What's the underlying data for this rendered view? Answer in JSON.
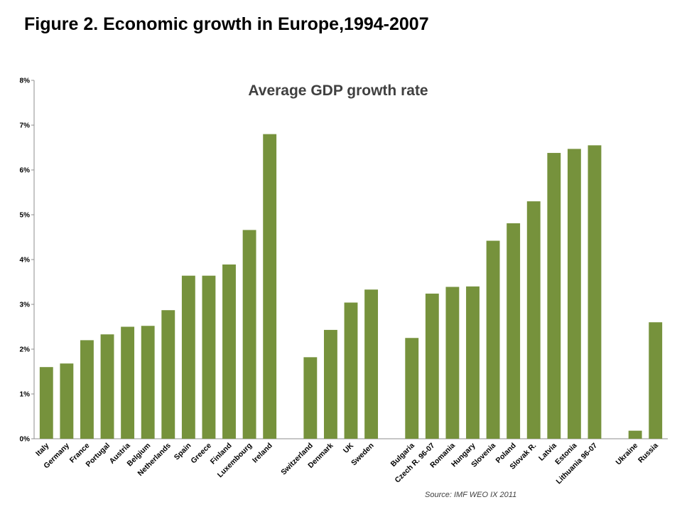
{
  "figure_title": "Figure 2. Economic growth in Europe,1994-2007",
  "chart_data": {
    "type": "bar",
    "title": "Average GDP growth rate",
    "source": "Source: IMF WEO IX 2011",
    "xlabel": "",
    "ylabel": "",
    "ylim": [
      0,
      8
    ],
    "yticks": [
      "0%",
      "1%",
      "2%",
      "3%",
      "4%",
      "5%",
      "6%",
      "7%",
      "8%"
    ],
    "grid": false,
    "color": "#76923c",
    "groups": [
      {
        "categories": [
          "Italy",
          "Germany",
          "France",
          "Portugal",
          "Austria",
          "Belgium",
          "Netherlands",
          "Spain",
          "Greece",
          "Finland",
          "Luxembourg",
          "Ireland"
        ],
        "values": [
          1.6,
          1.68,
          2.2,
          2.33,
          2.5,
          2.52,
          2.87,
          3.64,
          3.64,
          3.89,
          4.66,
          6.8
        ]
      },
      {
        "categories": [
          "Switzerland",
          "Denmark",
          "UK",
          "Sweden"
        ],
        "values": [
          1.82,
          2.43,
          3.04,
          3.33
        ]
      },
      {
        "categories": [
          "Bulgaria",
          "Czech R. 96-07",
          "Romania",
          "Hungary",
          "Slovenia",
          "Poland",
          "Slovak R.",
          "Latvia",
          "Estonia",
          "Lithuania 96-07"
        ],
        "values": [
          2.25,
          3.24,
          3.39,
          3.4,
          4.42,
          4.81,
          5.3,
          6.38,
          6.47,
          6.55
        ]
      },
      {
        "categories": [
          "Ukraine",
          "Russia"
        ],
        "values": [
          0.18,
          2.6
        ]
      }
    ]
  }
}
